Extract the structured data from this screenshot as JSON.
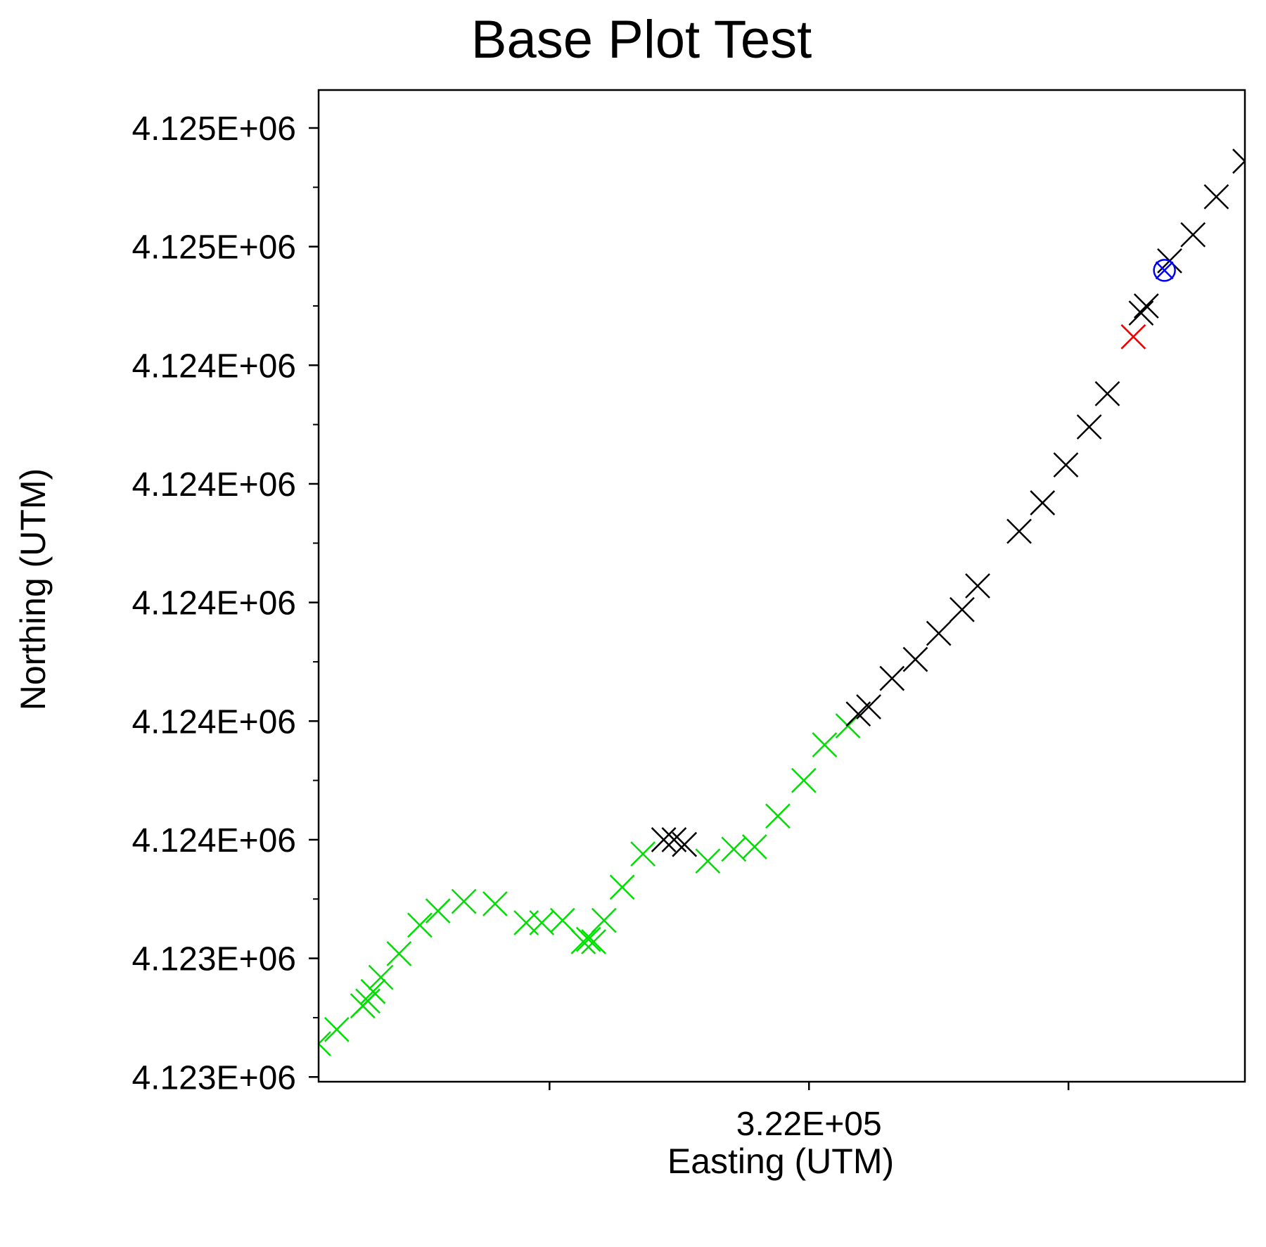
{
  "chart_data": {
    "type": "scatter",
    "title": "Base Plot Test",
    "xlabel": "Easting (UTM)",
    "ylabel": "Northing (UTM)",
    "xlim": [
      321555,
      323340
    ],
    "ylim": [
      4122990,
      4125080
    ],
    "x_ticks": [
      {
        "value": 322000,
        "label": ""
      },
      {
        "value": 322500,
        "label": "3.22E+05"
      },
      {
        "value": 323000,
        "label": ""
      }
    ],
    "x_minor_ticks": [],
    "y_ticks": [
      {
        "value": 4123000,
        "label": "4.123E+06"
      },
      {
        "value": 4123250,
        "label": "4.123E+06"
      },
      {
        "value": 4123500,
        "label": "4.124E+06"
      },
      {
        "value": 4123750,
        "label": "4.124E+06"
      },
      {
        "value": 4124000,
        "label": "4.124E+06"
      },
      {
        "value": 4124250,
        "label": "4.124E+06"
      },
      {
        "value": 4124500,
        "label": "4.124E+06"
      },
      {
        "value": 4124750,
        "label": "4.125E+06"
      },
      {
        "value": 4125000,
        "label": "4.125E+06"
      }
    ],
    "y_minor_ticks": [
      4123125,
      4123375,
      4123625,
      4123875,
      4124125,
      4124375,
      4124625,
      4124875
    ],
    "grid": false,
    "series": [
      {
        "marker": "x",
        "color": "#00dd00",
        "points": [
          [
            321555,
            4123070
          ],
          [
            321590,
            4123100
          ],
          [
            321640,
            4123150
          ],
          [
            321650,
            4123160
          ],
          [
            321660,
            4123180
          ],
          [
            321675,
            4123210
          ],
          [
            321710,
            4123260
          ],
          [
            321750,
            4123320
          ],
          [
            321785,
            4123350
          ],
          [
            321835,
            4123370
          ],
          [
            321895,
            4123365
          ],
          [
            321955,
            4123325
          ],
          [
            321985,
            4123325
          ],
          [
            322025,
            4123330
          ],
          [
            322065,
            4123285
          ],
          [
            322075,
            4123290
          ],
          [
            322085,
            4123285
          ],
          [
            322105,
            4123330
          ],
          [
            322140,
            4123400
          ],
          [
            322180,
            4123470
          ],
          [
            322305,
            4123455
          ],
          [
            322355,
            4123480
          ],
          [
            322395,
            4123485
          ],
          [
            322440,
            4123550
          ],
          [
            322490,
            4123625
          ],
          [
            322530,
            4123700
          ],
          [
            322575,
            4123740
          ]
        ]
      },
      {
        "marker": "x",
        "color": "#000000",
        "points": [
          [
            322220,
            4123500
          ],
          [
            322240,
            4123500
          ],
          [
            322260,
            4123490
          ],
          [
            322595,
            4123765
          ],
          [
            322615,
            4123780
          ],
          [
            322660,
            4123840
          ],
          [
            322705,
            4123880
          ],
          [
            322750,
            4123935
          ],
          [
            322795,
            4123985
          ],
          [
            322825,
            4124035
          ],
          [
            322905,
            4124150
          ],
          [
            322950,
            4124210
          ],
          [
            322995,
            4124290
          ],
          [
            323040,
            4124370
          ],
          [
            323075,
            4124440
          ],
          [
            323140,
            4124610
          ],
          [
            323150,
            4124625
          ],
          [
            323195,
            4124720
          ],
          [
            323240,
            4124775
          ],
          [
            323285,
            4124855
          ],
          [
            323340,
            4124930
          ]
        ]
      },
      {
        "marker": "x",
        "color": "#ee0000",
        "points": [
          [
            323125,
            4124560
          ]
        ]
      },
      {
        "marker": "circle",
        "color": "#0000ee",
        "points": [
          [
            323185,
            4124700
          ]
        ]
      }
    ]
  }
}
